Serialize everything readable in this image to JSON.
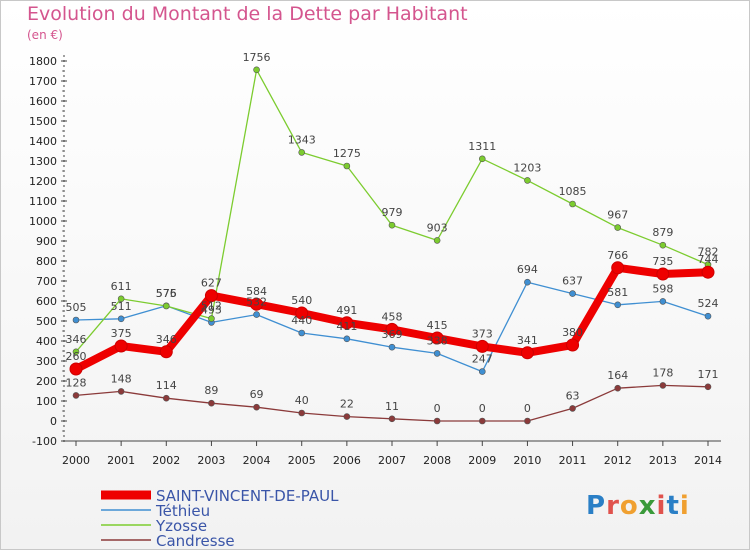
{
  "header": {
    "title": "Evolution du Montant de la Dette par Habitant",
    "subtitle": "(en €)"
  },
  "logo": {
    "text": "Proxiti",
    "letter_colors": [
      "#2a7fc6",
      "#e0524d",
      "#f0a030",
      "#3a9a3a",
      "#e0524d",
      "#2a7fc6",
      "#f0a030"
    ]
  },
  "chart_data": {
    "type": "line",
    "title": "Evolution du Montant de la Dette par Habitant",
    "subtitle": "(en €)",
    "xlabel": "",
    "ylabel": "",
    "ylim": [
      -100,
      1800
    ],
    "y_ticks": [
      -100,
      0,
      100,
      200,
      300,
      400,
      500,
      600,
      700,
      800,
      900,
      1000,
      1100,
      1200,
      1300,
      1400,
      1500,
      1600,
      1700,
      1800
    ],
    "x": [
      "2000",
      "2001",
      "2002",
      "2003",
      "2004",
      "2005",
      "2006",
      "2007",
      "2008",
      "2009",
      "2010",
      "2011",
      "2012",
      "2013",
      "2014"
    ],
    "grid": false,
    "legend_position": "bottom-left",
    "series": [
      {
        "name": "SAINT-VINCENT-DE-PAUL",
        "color": "#ee0000",
        "values": [
          260,
          375,
          346,
          627,
          584,
          540,
          491,
          458,
          415,
          373,
          341,
          380,
          766,
          735,
          744
        ]
      },
      {
        "name": "Téthieu",
        "color": "#3f8fd2",
        "values": [
          505,
          511,
          576,
          493,
          532,
          440,
          411,
          369,
          338,
          247,
          694,
          637,
          581,
          598,
          524
        ]
      },
      {
        "name": "Yzosse",
        "color": "#7ccc2f",
        "values": [
          346,
          611,
          575,
          512,
          1756,
          1343,
          1275,
          979,
          903,
          1311,
          1203,
          1085,
          967,
          879,
          782
        ]
      },
      {
        "name": "Candresse",
        "color": "#8b3a3a",
        "values": [
          128,
          148,
          114,
          89,
          69,
          40,
          22,
          11,
          0,
          0,
          0,
          63,
          164,
          178,
          171
        ]
      }
    ]
  }
}
